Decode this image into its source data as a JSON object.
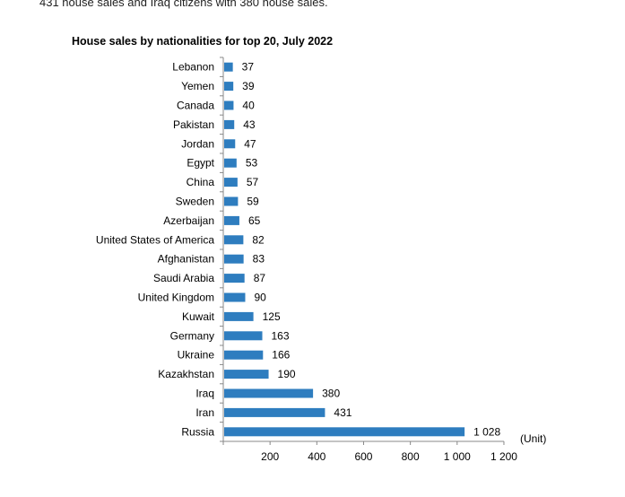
{
  "intro_text": "431 house sales and Iraq citizens with 380 house sales.",
  "chart_data": {
    "type": "bar",
    "orientation": "horizontal",
    "title": "House sales by nationalities for top 20, July 2022",
    "unit_label": "(Unit)",
    "bar_color": "#2e7dbf",
    "categories": [
      "Lebanon",
      "Yemen",
      "Canada",
      "Pakistan",
      "Jordan",
      "Egypt",
      "China",
      "Sweden",
      "Azerbaijan",
      "United States of America",
      "Afghanistan",
      "Saudi Arabia",
      "United Kingdom",
      "Kuwait",
      "Germany",
      "Ukraine",
      "Kazakhstan",
      "Iraq",
      "Iran",
      "Russia"
    ],
    "values": [
      37,
      39,
      40,
      43,
      47,
      53,
      57,
      59,
      65,
      82,
      83,
      87,
      90,
      125,
      163,
      166,
      190,
      380,
      431,
      1028
    ],
    "value_labels": [
      "37",
      "39",
      "40",
      "43",
      "47",
      "53",
      "57",
      "59",
      "65",
      "82",
      "83",
      "87",
      "90",
      "125",
      "163",
      "166",
      "190",
      "380",
      "431",
      "1 028"
    ],
    "xlim": [
      0,
      1200
    ],
    "x_ticks": [
      200,
      400,
      600,
      800,
      1000,
      1200
    ],
    "x_tick_labels": [
      "200",
      "400",
      "600",
      "800",
      "1 000",
      "1 200"
    ],
    "grid": false,
    "legend": "none"
  }
}
